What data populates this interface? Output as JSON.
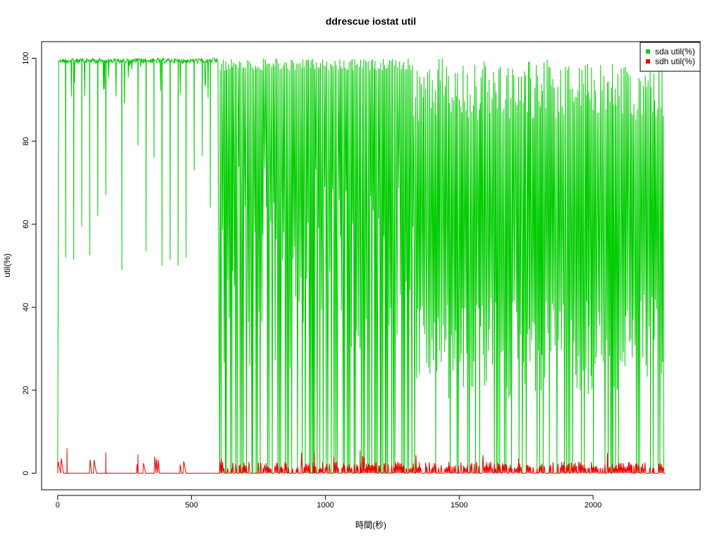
{
  "chart_data": {
    "type": "line",
    "title": "ddrescue iostat util",
    "xlabel": "時間(秒)",
    "ylabel": "util(%)",
    "xlim": [
      -60,
      2400
    ],
    "ylim": [
      -4,
      104
    ],
    "x_ticks": [
      0,
      500,
      1000,
      1500,
      2000
    ],
    "y_ticks": [
      0,
      20,
      40,
      60,
      80,
      100
    ],
    "x_tick_labels": [
      "0",
      "500",
      "1000",
      "1500",
      "2000"
    ],
    "y_tick_labels": [
      "0",
      "20",
      "40",
      "60",
      "80",
      "100"
    ],
    "x_range": [
      0,
      2270
    ],
    "grid": false,
    "legend_position": "top-right",
    "series": [
      {
        "name": "sda util(%)",
        "color": "#00cc00",
        "description_points": [
          {
            "x": 0,
            "y": 0
          },
          {
            "x": 5,
            "y": 100
          },
          {
            "x": 30,
            "y": 52
          },
          {
            "x": 60,
            "y": 51.5
          },
          {
            "x": 90,
            "y": 59.5
          },
          {
            "x": 120,
            "y": 52.5
          },
          {
            "x": 150,
            "y": 62
          },
          {
            "x": 180,
            "y": 67
          },
          {
            "x": 240,
            "y": 49
          },
          {
            "x": 300,
            "y": 79
          },
          {
            "x": 330,
            "y": 53.5
          },
          {
            "x": 360,
            "y": 76
          },
          {
            "x": 390,
            "y": 50
          },
          {
            "x": 420,
            "y": 51.5
          },
          {
            "x": 450,
            "y": 50
          },
          {
            "x": 480,
            "y": 52
          },
          {
            "x": 510,
            "y": 73
          },
          {
            "x": 540,
            "y": 76.5
          },
          {
            "x": 570,
            "y": 64
          },
          {
            "x": 600,
            "y": 68
          },
          {
            "x": 605,
            "y": 0
          }
        ]
      },
      {
        "name": "sdh util(%)",
        "color": "#ee0000",
        "description_points": [
          {
            "x": 0,
            "y": 0
          },
          {
            "x": 35,
            "y": 6
          },
          {
            "x": 180,
            "y": 5
          },
          {
            "x": 300,
            "y": 4.5
          },
          {
            "x": 960,
            "y": 5
          },
          {
            "x": 1130,
            "y": 5.5
          },
          {
            "x": 2270,
            "y": 0
          }
        ]
      }
    ]
  }
}
